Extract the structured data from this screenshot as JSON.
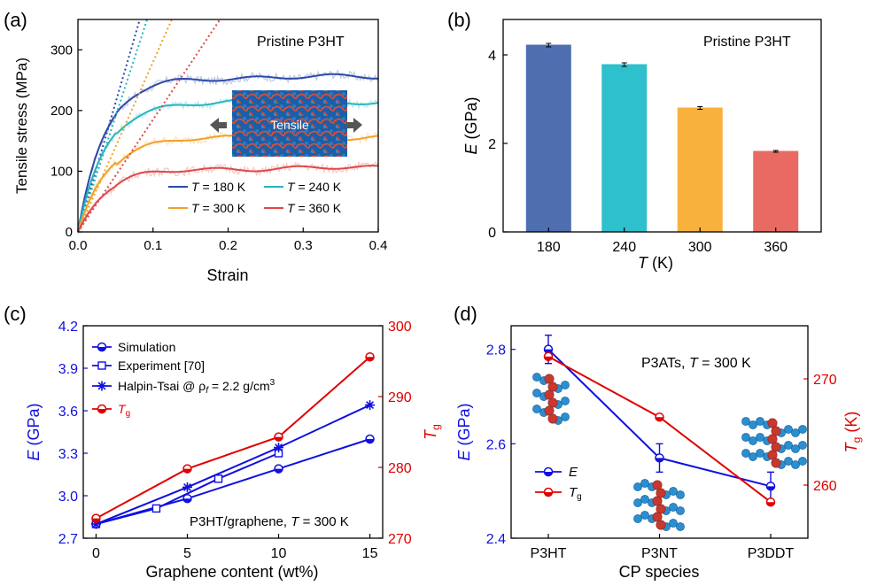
{
  "chart_data": [
    {
      "panel": "(a)",
      "type": "line",
      "annotation": "Pristine P3HT",
      "inset_label": "Tensile",
      "xlabel": "Strain",
      "ylabel": "Tensile stress (MPa)",
      "xlim": [
        0,
        0.4
      ],
      "ylim": [
        0,
        350
      ],
      "xticks": [
        "0.0",
        "0.1",
        "0.2",
        "0.3",
        "0.4"
      ],
      "yticks": [
        "0",
        "100",
        "200",
        "300"
      ],
      "legend_position": "bottom-right",
      "series": [
        {
          "name": "T = 180 K",
          "label_prefix": "T",
          "label_suffix": " = 180 K",
          "color": "#2c4aa8",
          "plateau": 255,
          "yield_strain": 0.085,
          "linear_slope": 4250
        },
        {
          "name": "T = 240 K",
          "label_prefix": "T",
          "label_suffix": " = 240 K",
          "color": "#27b5c0",
          "plateau": 215,
          "yield_strain": 0.085,
          "linear_slope": 3800
        },
        {
          "name": "T = 300 K",
          "label_prefix": "T",
          "label_suffix": " = 300 K",
          "color": "#f0a22a",
          "plateau": 155,
          "yield_strain": 0.09,
          "linear_slope": 2800
        },
        {
          "name": "T = 360 K",
          "label_prefix": "T",
          "label_suffix": " = 360 K",
          "color": "#e04848",
          "plateau": 105,
          "yield_strain": 0.095,
          "linear_slope": 1850
        }
      ]
    },
    {
      "panel": "(b)",
      "type": "bar",
      "annotation": "Pristine P3HT",
      "categories": [
        "180",
        "240",
        "300",
        "360"
      ],
      "values": [
        4.22,
        3.78,
        2.8,
        1.82
      ],
      "errors": [
        0.04,
        0.04,
        0.03,
        0.02
      ],
      "colors": [
        "#4e6eb0",
        "#2ec0cc",
        "#f9b13e",
        "#e96a62"
      ],
      "xlabel_italic": "T",
      "xlabel_rest": " (K)",
      "ylabel_italic": "E",
      "ylabel_rest": " (GPa)",
      "ylim": [
        0,
        4.8
      ],
      "yticks": [
        "0",
        "2",
        "4"
      ]
    },
    {
      "panel": "(c)",
      "type": "line",
      "annotation": "P3HT/graphene, T = 300 K",
      "xlabel": "Graphene content (wt%)",
      "ylabel_left": "E (GPa)",
      "ylabel_right": "Tg",
      "xlim": [
        -0.7,
        15.7
      ],
      "ylim_left": [
        2.7,
        4.2
      ],
      "ylim_right": [
        270,
        300
      ],
      "xticks": [
        "0",
        "5",
        "10",
        "15"
      ],
      "yticks_left": [
        "2.7",
        "3.0",
        "3.3",
        "3.6",
        "3.9",
        "4.2"
      ],
      "yticks_right": [
        "270",
        "280",
        "290",
        "300"
      ],
      "legend_position": "top-left",
      "series": [
        {
          "name": "Simulation",
          "axis": "left",
          "color": "#1010e0",
          "marker": "circle",
          "x": [
            0,
            5,
            10,
            15
          ],
          "y": [
            2.8,
            2.98,
            3.19,
            3.4
          ]
        },
        {
          "name": "Experiment [70]",
          "axis": "left",
          "color": "#1010e0",
          "marker": "square",
          "x": [
            0,
            3.3,
            6.7,
            10
          ],
          "y": [
            2.8,
            2.91,
            3.12,
            3.3
          ]
        },
        {
          "name": "Halpin-Tsai @ ρf = 2.2 g/cm3",
          "axis": "left",
          "color": "#1010e0",
          "marker": "star",
          "x": [
            0,
            5,
            10,
            15
          ],
          "y": [
            2.8,
            3.06,
            3.34,
            3.64
          ]
        },
        {
          "name": "Tg",
          "axis": "right",
          "color": "#e00000",
          "marker": "circle",
          "x": [
            0,
            5,
            10,
            15
          ],
          "y": [
            272.8,
            279.8,
            284.3,
            295.6
          ]
        }
      ]
    },
    {
      "panel": "(d)",
      "type": "line",
      "annotation": "P3ATs, T = 300 K",
      "xlabel": "CP species",
      "ylabel_left": "E (GPa)",
      "ylabel_right": "Tg (K)",
      "categories": [
        "P3HT",
        "P3NT",
        "P3DDT"
      ],
      "ylim_left": [
        2.4,
        2.85
      ],
      "ylim_right": [
        255,
        275
      ],
      "yticks_left": [
        "2.4",
        "2.6",
        "2.8"
      ],
      "yticks_right": [
        "260",
        "270"
      ],
      "legend_position": "center-left",
      "series": [
        {
          "name": "E",
          "axis": "left",
          "color": "#1010e0",
          "values": [
            2.8,
            2.57,
            2.51
          ],
          "errors": [
            0.03,
            0.03,
            0.03
          ]
        },
        {
          "name": "Tg",
          "axis": "right",
          "color": "#e00000",
          "values": [
            272.1,
            266.4,
            258.4
          ]
        }
      ]
    }
  ]
}
